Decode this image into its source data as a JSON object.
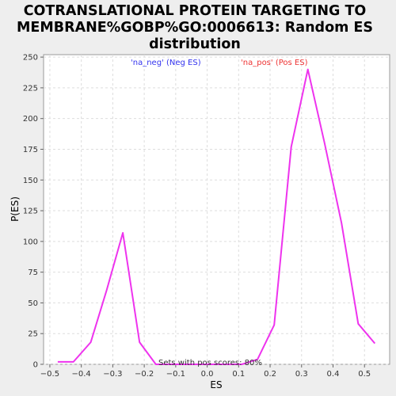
{
  "chart_data": {
    "type": "line",
    "title_lines": [
      "COTRANSLATIONAL PROTEIN TARGETING TO",
      "MEMBRANE%GOBP%GO:0006613: Random ES",
      "distribution"
    ],
    "xlabel": "ES",
    "ylabel": "P(ES)",
    "xlim": [
      -0.52,
      0.58
    ],
    "ylim": [
      0,
      252
    ],
    "xticks": [
      -0.5,
      -0.4,
      -0.3,
      -0.2,
      -0.1,
      0.0,
      0.1,
      0.2,
      0.3,
      0.4,
      0.5
    ],
    "xtick_labels": [
      "−0.5",
      "−0.4",
      "−0.3",
      "−0.2",
      "−0.1",
      "0.0",
      "0.1",
      "0.2",
      "0.3",
      "0.4",
      "0.5"
    ],
    "yticks": [
      0,
      25,
      50,
      75,
      100,
      125,
      150,
      175,
      200,
      225,
      250
    ],
    "ytick_labels": [
      "0",
      "25",
      "50",
      "75",
      "100",
      "125",
      "150",
      "175",
      "200",
      "225",
      "250"
    ],
    "grid": true,
    "series": [
      {
        "color": "#ee33ee",
        "x": [
          -0.475,
          -0.425,
          -0.37,
          -0.32,
          -0.268,
          -0.215,
          -0.163,
          0.0,
          0.11,
          0.16,
          0.213,
          0.267,
          0.32,
          0.373,
          0.427,
          0.48,
          0.533
        ],
        "y": [
          2,
          2,
          18,
          60,
          107,
          18,
          0,
          0,
          0,
          4,
          32,
          177,
          240,
          180,
          115,
          33,
          17
        ]
      }
    ],
    "legend": [
      {
        "label": "'na_neg' (Neg ES)",
        "color": "#3333ee"
      },
      {
        "label": "'na_pos' (Pos ES)",
        "color": "#ee3333"
      }
    ],
    "annotation": "Sets with pos scores: 80%"
  }
}
